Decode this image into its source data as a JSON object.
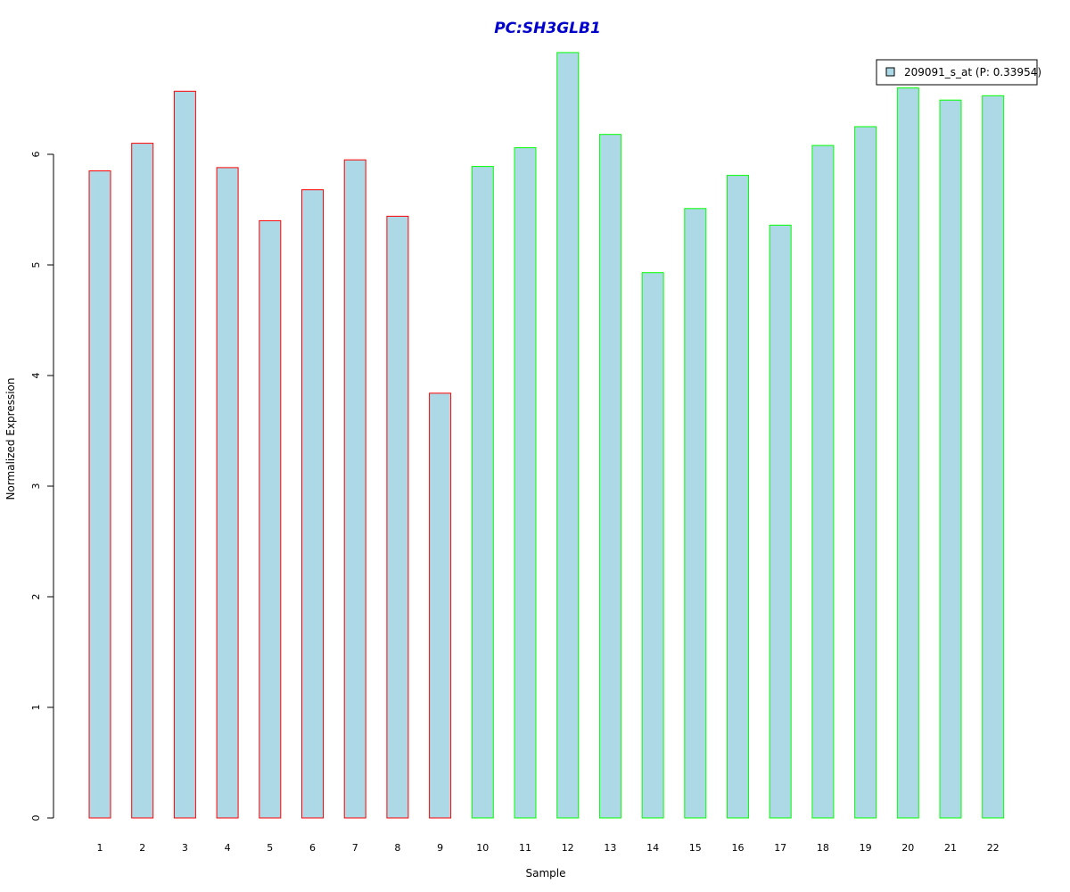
{
  "chart_data": {
    "type": "bar",
    "title": "PC:SH3GLB1",
    "xlabel": "Sample",
    "ylabel": "Normalized Expression",
    "categories": [
      "1",
      "2",
      "3",
      "4",
      "5",
      "6",
      "7",
      "8",
      "9",
      "10",
      "11",
      "12",
      "13",
      "14",
      "15",
      "16",
      "17",
      "18",
      "19",
      "20",
      "21",
      "22"
    ],
    "series": [
      {
        "name": "209091_s_at (P: 0.33954)",
        "values": [
          5.85,
          6.1,
          6.57,
          5.88,
          5.4,
          5.68,
          5.95,
          5.44,
          3.84,
          5.89,
          6.06,
          6.92,
          6.18,
          4.93,
          5.51,
          5.81,
          5.36,
          6.08,
          6.25,
          6.6,
          6.49,
          6.53
        ]
      }
    ],
    "bar_fill": "#add8e6",
    "border_colors": [
      "#ff0000",
      "#ff0000",
      "#ff0000",
      "#ff0000",
      "#ff0000",
      "#ff0000",
      "#ff0000",
      "#ff0000",
      "#ff0000",
      "#00ff00",
      "#00ff00",
      "#00ff00",
      "#00ff00",
      "#00ff00",
      "#00ff00",
      "#00ff00",
      "#00ff00",
      "#00ff00",
      "#00ff00",
      "#00ff00",
      "#00ff00",
      "#00ff00"
    ],
    "title_color": "#0000cc",
    "yticks": [
      0,
      1,
      2,
      3,
      4,
      5,
      6
    ],
    "ylim": [
      0,
      7.0
    ],
    "grid": false,
    "legend_position": "top-right"
  }
}
